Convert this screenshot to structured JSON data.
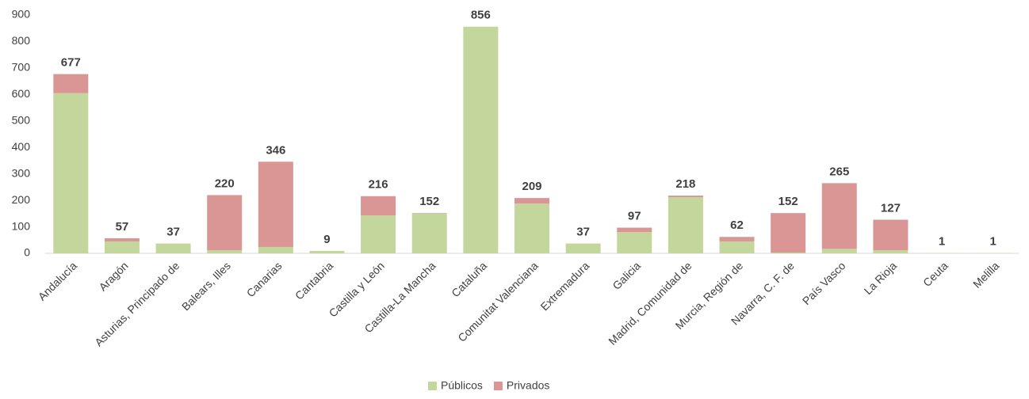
{
  "chart_data": {
    "type": "stacked_bar",
    "categories": [
      "Andalucía",
      "Aragón",
      "Asturias, Principado de",
      "Balears, Illes",
      "Canarias",
      "Cantabria",
      "Castilla y León",
      "Castilla-La Mancha",
      "Cataluña",
      "Comunitat Valenciana",
      "Extremadura",
      "Galicia",
      "Madrid, Comunidad de",
      "Murcia, Región de",
      "Navarra, C. F. de",
      "País Vasco",
      "La Rioja",
      "Ceuta",
      "Melilla"
    ],
    "series": [
      {
        "name": "Públicos",
        "color": "#c3d69b",
        "values": [
          605,
          45,
          37,
          12,
          24,
          9,
          143,
          150,
          856,
          188,
          37,
          80,
          212,
          45,
          3,
          17,
          12,
          1,
          1
        ]
      },
      {
        "name": "Privados",
        "color": "#d99694",
        "values": [
          72,
          12,
          0,
          208,
          322,
          0,
          73,
          2,
          0,
          21,
          0,
          17,
          6,
          17,
          149,
          248,
          115,
          0,
          0
        ]
      }
    ],
    "totals": [
      677,
      57,
      37,
      220,
      346,
      9,
      216,
      152,
      856,
      209,
      37,
      97,
      218,
      62,
      152,
      265,
      127,
      1,
      1
    ],
    "ylim": [
      0,
      900
    ],
    "yticks": [
      0,
      100,
      200,
      300,
      400,
      500,
      600,
      700,
      800,
      900
    ],
    "legend": "bottom"
  }
}
